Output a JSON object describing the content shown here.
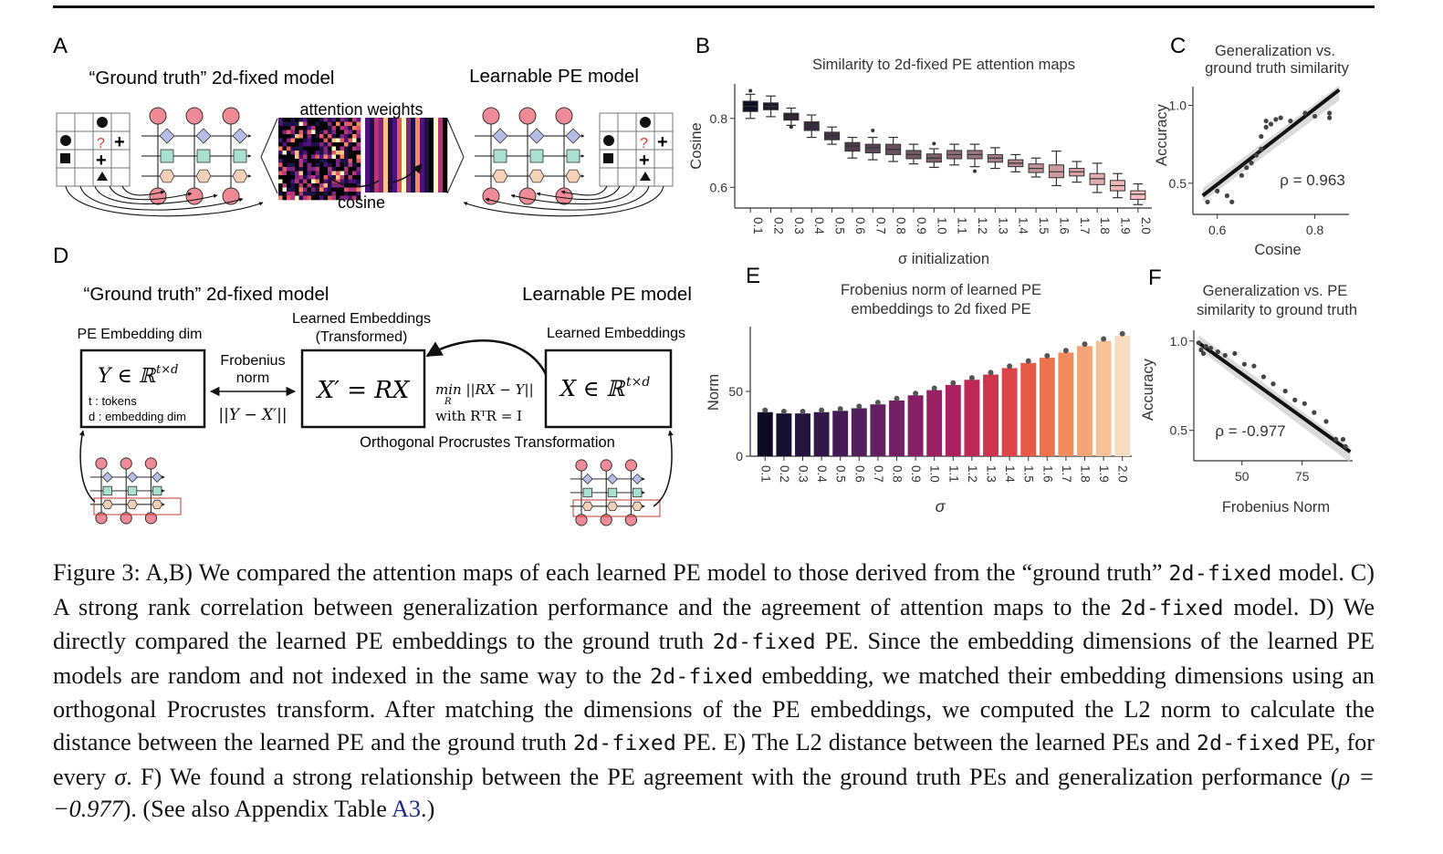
{
  "panels": {
    "a": {
      "letter": "A",
      "left_title": "“Ground truth” 2d-fixed model",
      "right_title": "Learnable PE model",
      "attention_label": "attention weights",
      "cosine_label": "cosine",
      "question_mark": "?",
      "plus": "+"
    },
    "b": {
      "letter": "B",
      "title": "Similarity to 2d-fixed PE attention maps",
      "ylabel": "Cosine",
      "xlabel": "σ initialization"
    },
    "c": {
      "letter": "C",
      "title_line1": "Generalization vs.",
      "title_line2": "ground truth similarity",
      "ylabel": "Accuracy",
      "xlabel": "Cosine",
      "rho": "ρ =  0.963"
    },
    "d": {
      "letter": "D",
      "left_title": "“Ground truth” 2d-fixed model",
      "right_title": "Learnable PE model",
      "pe_dim_label": "PE Embedding dim",
      "learned_transformed_line1": "Learned Embeddings",
      "learned_transformed_line2": "(Transformed)",
      "learned_label": "Learned Embeddings",
      "frobenius_line1": "Frobenius",
      "frobenius_line2": "norm",
      "norm_expr": "||Y − X′||",
      "y_box": "Y ∈ ℝ",
      "y_sup": "t×d",
      "tokens_line": "t : tokens",
      "embed_line": "d : embedding dim",
      "xprime_box": "X′ = RX",
      "x_box": "X ∈ ℝ",
      "x_sup": "t×d",
      "min_expr": "min ||RX − Y||",
      "min_sub": "R",
      "with_expr": "with  RᵀR = I",
      "procrustes_label": "Orthogonal Procrustes Transformation"
    },
    "e": {
      "letter": "E",
      "title_line1": "Frobenius norm of learned PE",
      "title_line2": "embeddings to 2d fixed PE",
      "ylabel": "Norm",
      "xlabel": "σ"
    },
    "f": {
      "letter": "F",
      "title_line1": "Generalization vs. PE",
      "title_line2": "similarity to ground truth",
      "ylabel": "Accuracy",
      "xlabel": "Frobenius Norm",
      "rho": "ρ =  -0.977"
    }
  },
  "caption": {
    "s1": "Figure 3: A,B) We compared the attention maps of each learned PE model to those derived from the “ground truth” ",
    "c1": "2d-fixed",
    "s2": " model. C) A strong rank correlation between generalization performance and the agreement of attention maps to the ",
    "c2": "2d-fixed",
    "s3": " model. D) We directly compared the learned PE embeddings to the ground truth ",
    "c3": "2d-fixed",
    "s4": " PE. Since the embedding dimensions of the learned PE models are random and not indexed in the same way to the ",
    "c4": "2d-fixed",
    "s5": " embedding, we matched their embedding dimensions using an orthogonal Procrustes transform. After matching the dimensions of the PE embeddings, we computed the L2 norm to calculate the distance between the learned PE and the ground truth ",
    "c5": "2d-fixed",
    "s6": " PE. E) The L2 distance between the learned PEs and ",
    "c6": "2d-fixed",
    "s7": " PE, for every ",
    "sigma": "σ",
    "s8": ". F) We found a strong relationship between the PE agreement with the ground truth PEs and generalization performance (",
    "rho_expr": "ρ = −0.977",
    "s9": "). (See also Appendix Table ",
    "link": "A3",
    "s10": ".)"
  },
  "chart_data": [
    {
      "panel": "B",
      "type": "box",
      "title": "Similarity to 2d-fixed PE attention maps",
      "xlabel": "σ initialization",
      "ylabel": "Cosine",
      "categories": [
        "0.1",
        "0.2",
        "0.3",
        "0.4",
        "0.5",
        "0.6",
        "0.7",
        "0.8",
        "0.9",
        "1.0",
        "1.1",
        "1.2",
        "1.3",
        "1.4",
        "1.5",
        "1.6",
        "1.7",
        "1.8",
        "1.9",
        "2.0"
      ],
      "median": [
        0.835,
        0.835,
        0.805,
        0.78,
        0.75,
        0.72,
        0.715,
        0.71,
        0.695,
        0.685,
        0.695,
        0.695,
        0.685,
        0.67,
        0.655,
        0.645,
        0.645,
        0.625,
        0.605,
        0.58
      ],
      "q1": [
        0.82,
        0.825,
        0.795,
        0.765,
        0.738,
        0.705,
        0.7,
        0.695,
        0.683,
        0.673,
        0.683,
        0.683,
        0.673,
        0.66,
        0.643,
        0.628,
        0.633,
        0.608,
        0.59,
        0.565
      ],
      "q3": [
        0.85,
        0.845,
        0.815,
        0.79,
        0.76,
        0.73,
        0.725,
        0.725,
        0.707,
        0.697,
        0.707,
        0.707,
        0.695,
        0.68,
        0.668,
        0.665,
        0.655,
        0.64,
        0.62,
        0.59
      ],
      "low": [
        0.8,
        0.805,
        0.78,
        0.745,
        0.725,
        0.685,
        0.68,
        0.675,
        0.668,
        0.658,
        0.665,
        0.66,
        0.655,
        0.645,
        0.63,
        0.605,
        0.615,
        0.585,
        0.57,
        0.55
      ],
      "high": [
        0.87,
        0.865,
        0.83,
        0.81,
        0.775,
        0.745,
        0.745,
        0.745,
        0.725,
        0.712,
        0.725,
        0.725,
        0.715,
        0.695,
        0.685,
        0.705,
        0.675,
        0.67,
        0.64,
        0.61
      ],
      "outliers": [
        [
          0,
          0.88
        ],
        [
          2,
          0.775
        ],
        [
          6,
          0.765
        ],
        [
          9,
          0.727
        ],
        [
          11,
          0.647
        ]
      ],
      "yticks": [
        0.6,
        0.8
      ],
      "ylim": [
        0.54,
        0.9
      ]
    },
    {
      "panel": "C",
      "type": "scatter",
      "title": "Generalization vs. ground truth similarity",
      "xlabel": "Cosine",
      "ylabel": "Accuracy",
      "points": [
        [
          0.58,
          0.38
        ],
        [
          0.6,
          0.45
        ],
        [
          0.62,
          0.42
        ],
        [
          0.63,
          0.38
        ],
        [
          0.65,
          0.55
        ],
        [
          0.66,
          0.6
        ],
        [
          0.67,
          0.63
        ],
        [
          0.68,
          0.68
        ],
        [
          0.69,
          0.72
        ],
        [
          0.69,
          0.8
        ],
        [
          0.7,
          0.86
        ],
        [
          0.7,
          0.9
        ],
        [
          0.71,
          0.88
        ],
        [
          0.72,
          0.91
        ],
        [
          0.73,
          0.92
        ],
        [
          0.75,
          0.9
        ],
        [
          0.78,
          0.95
        ],
        [
          0.8,
          0.93
        ],
        [
          0.83,
          0.92
        ],
        [
          0.83,
          0.95
        ]
      ],
      "fit": [
        [
          0.57,
          0.42
        ],
        [
          0.85,
          1.1
        ]
      ],
      "xticks": [
        0.6,
        0.8
      ],
      "yticks": [
        0.5,
        1.0
      ],
      "xlim": [
        0.55,
        0.87
      ],
      "ylim": [
        0.3,
        1.12
      ],
      "annotation": "ρ = 0.963"
    },
    {
      "panel": "E",
      "type": "bar",
      "title": "Frobenius norm of learned PE embeddings to 2d fixed PE",
      "xlabel": "σ",
      "ylabel": "Norm",
      "categories": [
        "0.1",
        "0.2",
        "0.3",
        "0.4",
        "0.5",
        "0.6",
        "0.7",
        "0.8",
        "0.9",
        "1.0",
        "1.1",
        "1.2",
        "1.3",
        "1.4",
        "1.5",
        "1.6",
        "1.7",
        "1.8",
        "1.9",
        "2.0"
      ],
      "values": [
        34,
        33,
        33,
        34,
        35,
        37,
        40,
        43,
        47,
        51,
        55,
        59,
        63,
        68,
        72,
        76,
        80,
        85,
        89,
        93
      ],
      "colors": [
        "#0b0924",
        "#15102f",
        "#23153d",
        "#32184a",
        "#421b55",
        "#521e5d",
        "#641f63",
        "#751f66",
        "#871f66",
        "#991f63",
        "#ab225e",
        "#bd2957",
        "#cd354f",
        "#db4547",
        "#e65a45",
        "#ec734e",
        "#f08b5e",
        "#f3a576",
        "#f5c29a",
        "#f6dcc0"
      ],
      "yticks": [
        0,
        50
      ],
      "ylim": [
        0,
        100
      ]
    },
    {
      "panel": "F",
      "type": "scatter",
      "title": "Generalization vs. PE similarity to ground truth",
      "xlabel": "Frobenius Norm",
      "ylabel": "Accuracy",
      "points": [
        [
          32,
          0.99
        ],
        [
          33,
          0.95
        ],
        [
          34,
          0.93
        ],
        [
          35,
          0.97
        ],
        [
          37,
          0.96
        ],
        [
          40,
          0.94
        ],
        [
          43,
          0.92
        ],
        [
          47,
          0.93
        ],
        [
          51,
          0.87
        ],
        [
          55,
          0.86
        ],
        [
          59,
          0.8
        ],
        [
          63,
          0.76
        ],
        [
          68,
          0.72
        ],
        [
          72,
          0.67
        ],
        [
          76,
          0.65
        ],
        [
          80,
          0.6
        ],
        [
          85,
          0.55
        ],
        [
          89,
          0.45
        ],
        [
          92,
          0.45
        ],
        [
          93,
          0.41
        ]
      ],
      "fit": [
        [
          32,
          0.99
        ],
        [
          95,
          0.38
        ]
      ],
      "xticks": [
        50,
        75
      ],
      "yticks": [
        0.5,
        1.0
      ],
      "xlim": [
        30,
        96
      ],
      "ylim": [
        0.33,
        1.06
      ],
      "annotation": "ρ = -0.977"
    }
  ]
}
